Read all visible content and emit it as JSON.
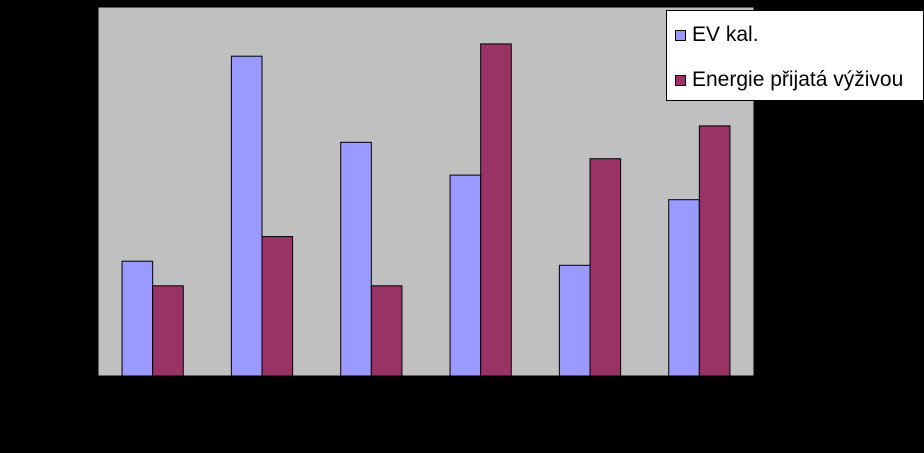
{
  "chart_data": {
    "type": "bar",
    "categories": [
      "",
      "",
      "",
      "",
      "",
      ""
    ],
    "series": [
      {
        "name": "EV kal.",
        "color": "#9999ff",
        "values": [
          28,
          78,
          57,
          49,
          27,
          43
        ]
      },
      {
        "name": "Energie přijatá výživou",
        "color": "#993366",
        "values": [
          22,
          34,
          22,
          81,
          53,
          61
        ]
      }
    ],
    "title": "",
    "xlabel": "",
    "ylabel": "",
    "ylim": [
      0,
      90
    ],
    "grid": false,
    "legend": "top-right",
    "plot_background": "#c0c0c0",
    "page_background": "#000000"
  }
}
